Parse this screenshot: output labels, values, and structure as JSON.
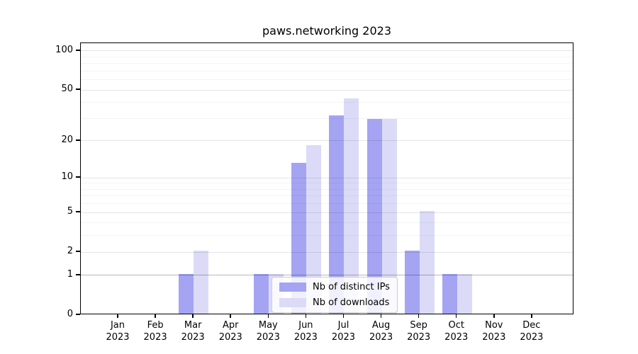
{
  "chart_data": {
    "type": "bar",
    "title": "paws.networking 2023",
    "months": [
      "Jan",
      "Feb",
      "Mar",
      "Apr",
      "May",
      "Jun",
      "Jul",
      "Aug",
      "Sep",
      "Oct",
      "Nov",
      "Dec"
    ],
    "year_label": "2023",
    "series": [
      {
        "name": "Nb of distinct IPs",
        "color": "#a4a4f3",
        "values": [
          0,
          0,
          1,
          0,
          1,
          13,
          31,
          29,
          2,
          1,
          0,
          0
        ]
      },
      {
        "name": "Nb of downloads",
        "color": "#dbdbf8",
        "values": [
          0,
          0,
          2,
          0,
          1,
          18,
          42,
          29,
          5,
          1,
          0,
          0
        ]
      }
    ],
    "y_scale": "log1p",
    "y_ticks": [
      0,
      1,
      2,
      5,
      10,
      20,
      50,
      100
    ],
    "y_minor_gridlines": [
      3,
      4,
      6,
      7,
      8,
      9,
      30,
      40,
      60,
      70,
      80,
      90
    ],
    "ylim": [
      0,
      115
    ],
    "grid": true,
    "legend_position": "lower center"
  }
}
